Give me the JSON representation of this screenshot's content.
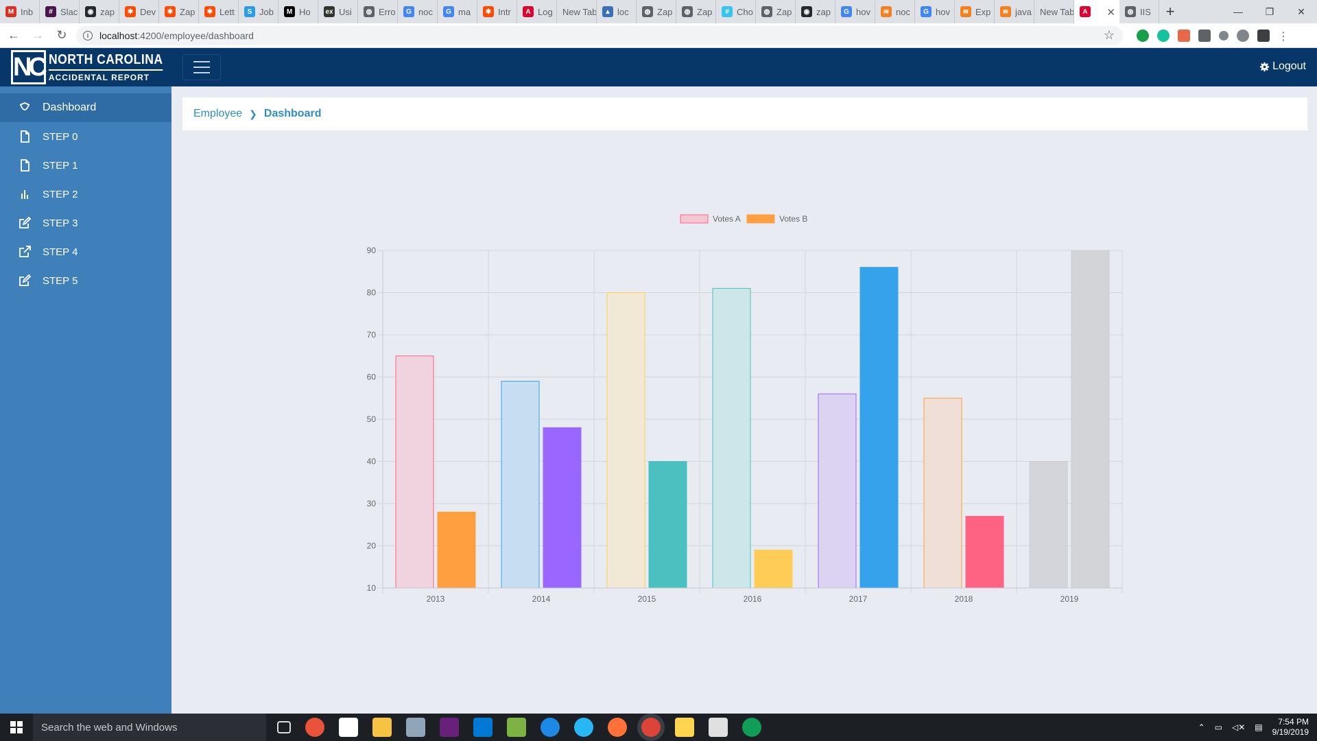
{
  "browser": {
    "tabs": [
      {
        "label": "Inb",
        "icon": "gmail-icon",
        "color": "#d93025",
        "glyph": "M"
      },
      {
        "label": "Slac",
        "icon": "slack-icon",
        "color": "#4a154b",
        "glyph": "#"
      },
      {
        "label": "zap",
        "icon": "github-icon",
        "color": "#24292e",
        "glyph": "◉"
      },
      {
        "label": "Dev",
        "icon": "zapier-icon",
        "color": "#ff4a00",
        "glyph": "✱"
      },
      {
        "label": "Zap",
        "icon": "zapier-icon",
        "color": "#ff4a00",
        "glyph": "✱"
      },
      {
        "label": "Lett",
        "icon": "zapier-icon",
        "color": "#ff4a00",
        "glyph": "✱"
      },
      {
        "label": "Job",
        "icon": "site-icon",
        "color": "#2c9be6",
        "glyph": "S"
      },
      {
        "label": "Ho",
        "icon": "medium-icon",
        "color": "#000000",
        "glyph": "M"
      },
      {
        "label": "Usi",
        "icon": "exercism-icon",
        "color": "#333333",
        "glyph": "ex"
      },
      {
        "label": "Erro",
        "icon": "globe-icon",
        "color": "#5f6368",
        "glyph": "◍"
      },
      {
        "label": "noc",
        "icon": "google-icon",
        "color": "#4285f4",
        "glyph": "G"
      },
      {
        "label": "ma",
        "icon": "google-icon",
        "color": "#4285f4",
        "glyph": "G"
      },
      {
        "label": "Intr",
        "icon": "zapier-icon",
        "color": "#ff4a00",
        "glyph": "✱"
      },
      {
        "label": "Log",
        "icon": "angular-icon",
        "color": "#dd0031",
        "glyph": "A"
      },
      {
        "label": "New Tab",
        "icon": "",
        "color": "",
        "glyph": ""
      },
      {
        "label": "loc",
        "icon": "site-icon",
        "color": "#3b6fb6",
        "glyph": "▲"
      },
      {
        "label": "Zap",
        "icon": "globe-icon",
        "color": "#5f6368",
        "glyph": "◍"
      },
      {
        "label": "Zap",
        "icon": "globe-icon",
        "color": "#5f6368",
        "glyph": "◍"
      },
      {
        "label": "Cho",
        "icon": "slack-icon",
        "color": "#36c5f0",
        "glyph": "#"
      },
      {
        "label": "Zap",
        "icon": "globe-icon",
        "color": "#5f6368",
        "glyph": "◍"
      },
      {
        "label": "zap",
        "icon": "github-icon",
        "color": "#24292e",
        "glyph": "◉"
      },
      {
        "label": "hov",
        "icon": "google-icon",
        "color": "#4285f4",
        "glyph": "G"
      },
      {
        "label": "noc",
        "icon": "stackoverflow-icon",
        "color": "#f48024",
        "glyph": "≋"
      },
      {
        "label": "hov",
        "icon": "google-icon",
        "color": "#4285f4",
        "glyph": "G"
      },
      {
        "label": "Exp",
        "icon": "stackoverflow-icon",
        "color": "#f48024",
        "glyph": "≋"
      },
      {
        "label": "java",
        "icon": "stackoverflow-icon",
        "color": "#f48024",
        "glyph": "≋"
      },
      {
        "label": "New Tab",
        "icon": "",
        "color": "",
        "glyph": ""
      },
      {
        "label": "",
        "icon": "angular-icon",
        "color": "#dd0031",
        "glyph": "A",
        "active": true
      },
      {
        "label": "IIS",
        "icon": "globe-icon",
        "color": "#5f6368",
        "glyph": "◍"
      }
    ],
    "url_host": "localhost",
    "url_path": ":4200/employee/dashboard"
  },
  "app": {
    "brand_letters": "NC",
    "brand_line1": "NORTH CAROLINA",
    "brand_line2": "ACCIDENTAL REPORT",
    "logout_label": "Logout",
    "nav": [
      {
        "label": "Dashboard",
        "icon": "dashboard-icon",
        "active": true
      },
      {
        "label": "STEP 0",
        "icon": "file-icon"
      },
      {
        "label": "STEP 1",
        "icon": "file-icon"
      },
      {
        "label": "STEP 2",
        "icon": "bar-chart-icon"
      },
      {
        "label": "STEP 3",
        "icon": "edit-icon"
      },
      {
        "label": "STEP 4",
        "icon": "external-link-icon"
      },
      {
        "label": "STEP 5",
        "icon": "edit-icon"
      }
    ],
    "breadcrumb": {
      "parent": "Employee",
      "current": "Dashboard"
    }
  },
  "chart_data": {
    "type": "bar",
    "categories": [
      "2013",
      "2014",
      "2015",
      "2016",
      "2017",
      "2018",
      "2019"
    ],
    "series": [
      {
        "name": "Votes A",
        "legend_fill": "#f4c6d2",
        "legend_stroke": "#ff6384",
        "values": [
          65,
          59,
          80,
          81,
          56,
          55,
          40
        ],
        "fills": [
          "#f1d3df",
          "#c7ddf2",
          "#f1e8d6",
          "#cce6ea",
          "#dcd3f3",
          "#f0dfd6",
          "#d3d5da"
        ],
        "strokes": [
          "#ff6384",
          "#36a2eb",
          "#ffce56",
          "#4bc0c0",
          "#9966ff",
          "#ff9f40",
          "#c9cbcf"
        ]
      },
      {
        "name": "Votes B",
        "legend_fill": "#ff9f40",
        "legend_stroke": "#ff9f40",
        "values": [
          28,
          48,
          40,
          19,
          86,
          27,
          90
        ],
        "fills": [
          "#ff9f40",
          "#9966ff",
          "#4bc0c0",
          "#ffcd56",
          "#36a2eb",
          "#ff6384",
          "#d2d4d8"
        ],
        "strokes": [
          "#ff9f40",
          "#9966ff",
          "#4bc0c0",
          "#ffcd56",
          "#36a2eb",
          "#ff6384",
          "#c9cbcf"
        ]
      }
    ],
    "yticks": [
      10,
      20,
      30,
      40,
      50,
      60,
      70,
      80,
      90
    ],
    "ylim": [
      10,
      90
    ],
    "grid": true,
    "legend": "top"
  },
  "taskbar": {
    "search_placeholder": "Search the web and Windows",
    "time": "7:54 PM",
    "date": "9/19/2019"
  }
}
